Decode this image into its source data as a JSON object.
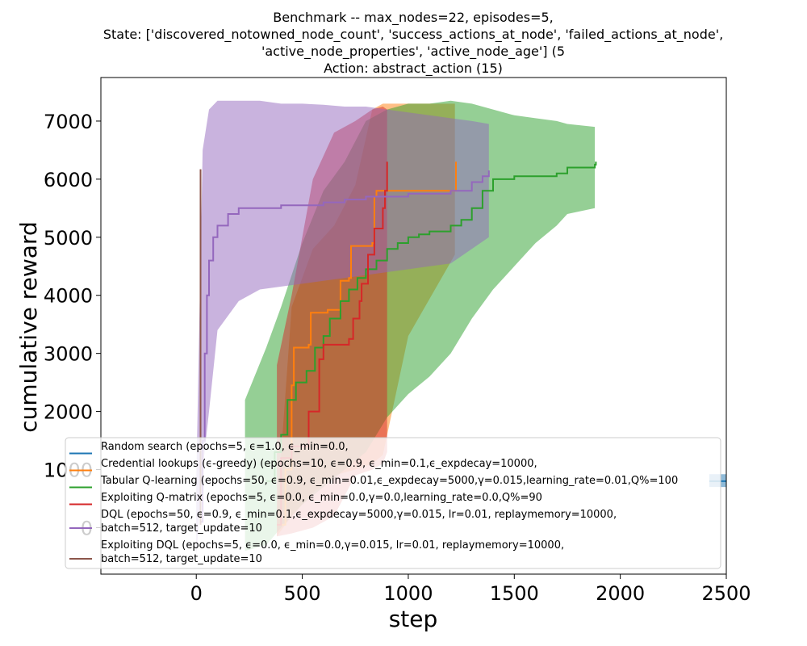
{
  "chart_data": {
    "type": "line",
    "title_lines": [
      "Benchmark -- max_nodes=22, episodes=5,",
      "State: ['discovered_notowned_node_count', 'success_actions_at_node', 'failed_actions_at_node',",
      "'active_node_properties', 'active_node_age'] (5",
      "Action: abstract_action (15)"
    ],
    "xlabel": "step",
    "ylabel": "cumulative reward",
    "xlim": [
      -450,
      2500
    ],
    "ylim": [
      -800,
      7750
    ],
    "xticks": [
      0,
      500,
      1000,
      1500,
      2000,
      2500
    ],
    "yticks": [
      0,
      1000,
      2000,
      3000,
      4000,
      5000,
      6000,
      7000
    ],
    "legend_position": "lower center",
    "series": [
      {
        "name": "Random search (epochs=5, ϵ=1.0, ϵ_min=0.0,",
        "color": "#1f77b4",
        "points": [
          [
            2420,
            800
          ],
          [
            2500,
            800
          ]
        ],
        "band": {
          "x": [
            2420,
            2500
          ],
          "lo": [
            700,
            700
          ],
          "hi": [
            920,
            920
          ]
        }
      },
      {
        "name": "Credential lookups (ϵ-greedy) (epochs=10, ϵ=0.9, ϵ_min=0.1,ϵ_expdecay=10000,",
        "color": "#ff7f0e",
        "points": [
          [
            380,
            50
          ],
          [
            420,
            1000
          ],
          [
            450,
            2450
          ],
          [
            460,
            3100
          ],
          [
            530,
            3150
          ],
          [
            540,
            3700
          ],
          [
            620,
            3750
          ],
          [
            650,
            3750
          ],
          [
            680,
            4250
          ],
          [
            720,
            4300
          ],
          [
            730,
            4850
          ],
          [
            830,
            4900
          ],
          [
            840,
            5700
          ],
          [
            850,
            5800
          ],
          [
            1220,
            5800
          ],
          [
            1225,
            6300
          ]
        ],
        "band": {
          "x": [
            380,
            450,
            550,
            650,
            750,
            830,
            880,
            1000,
            1220
          ],
          "lo": [
            -150,
            200,
            600,
            900,
            1000,
            1100,
            1250,
            3300,
            4700
          ],
          "hi": [
            250,
            3800,
            4800,
            5200,
            5900,
            7200,
            7300,
            7300,
            7300
          ]
        }
      },
      {
        "name": "Tabular Q-learning (epochs=50, ϵ=0.9, ϵ_min=0.01,ϵ_expdecay=5000,γ=0.015,learning_rate=0.01,Q%=100",
        "color": "#2ca02c",
        "points": [
          [
            330,
            800
          ],
          [
            370,
            1300
          ],
          [
            400,
            1600
          ],
          [
            430,
            2200
          ],
          [
            470,
            2500
          ],
          [
            520,
            2700
          ],
          [
            560,
            3100
          ],
          [
            600,
            3300
          ],
          [
            630,
            3600
          ],
          [
            680,
            3900
          ],
          [
            720,
            4100
          ],
          [
            760,
            4300
          ],
          [
            800,
            4450
          ],
          [
            850,
            4600
          ],
          [
            900,
            4800
          ],
          [
            950,
            4900
          ],
          [
            1000,
            5000
          ],
          [
            1050,
            5050
          ],
          [
            1100,
            5100
          ],
          [
            1200,
            5200
          ],
          [
            1250,
            5300
          ],
          [
            1300,
            5500
          ],
          [
            1350,
            5800
          ],
          [
            1400,
            6000
          ],
          [
            1500,
            6050
          ],
          [
            1700,
            6100
          ],
          [
            1750,
            6200
          ],
          [
            1880,
            6250
          ],
          [
            1885,
            6300
          ]
        ],
        "band": {
          "x": [
            230,
            330,
            400,
            500,
            600,
            700,
            800,
            900,
            1000,
            1100,
            1200,
            1300,
            1400,
            1500,
            1600,
            1700,
            1750,
            1880
          ],
          "lo": [
            -400,
            -300,
            0,
            400,
            700,
            1000,
            1300,
            1900,
            2300,
            2600,
            3000,
            3600,
            4100,
            4500,
            4900,
            5200,
            5400,
            5500
          ],
          "hi": [
            2200,
            3100,
            3800,
            4900,
            5800,
            6300,
            7000,
            7200,
            7300,
            7300,
            7350,
            7300,
            7200,
            7100,
            7050,
            7000,
            6950,
            6900
          ]
        }
      },
      {
        "name": "Exploiting Q-matrix (epochs=5, ϵ=0.0, ϵ_min=0.0,γ=0.0,learning_rate=0.0,Q%=90",
        "color": "#d62728",
        "points": [
          [
            380,
            50
          ],
          [
            400,
            1200
          ],
          [
            450,
            1400
          ],
          [
            530,
            2000
          ],
          [
            580,
            2900
          ],
          [
            600,
            3150
          ],
          [
            700,
            3150
          ],
          [
            720,
            3250
          ],
          [
            740,
            3600
          ],
          [
            770,
            3900
          ],
          [
            780,
            4200
          ],
          [
            810,
            4700
          ],
          [
            840,
            5150
          ],
          [
            880,
            5500
          ],
          [
            890,
            5800
          ],
          [
            900,
            6300
          ]
        ],
        "band": {
          "x": [
            380,
            450,
            550,
            650,
            750,
            830,
            880,
            900
          ],
          "lo": [
            -150,
            -100,
            0,
            200,
            900,
            1000,
            1100,
            1300
          ],
          "hi": [
            2800,
            4000,
            6000,
            6800,
            7000,
            7200,
            7250,
            7200
          ]
        }
      },
      {
        "name": "DQL (epochs=50, ϵ=0.9, ϵ_min=0.1,ϵ_expdecay=5000,γ=0.015, lr=0.01, replaymemory=10000,\nbatch=512, target_update=10",
        "color": "#9467bd",
        "points": [
          [
            20,
            100
          ],
          [
            30,
            1500
          ],
          [
            40,
            3000
          ],
          [
            50,
            4000
          ],
          [
            60,
            4600
          ],
          [
            80,
            5000
          ],
          [
            100,
            5200
          ],
          [
            150,
            5400
          ],
          [
            200,
            5500
          ],
          [
            400,
            5550
          ],
          [
            600,
            5600
          ],
          [
            700,
            5650
          ],
          [
            800,
            5700
          ],
          [
            1000,
            5750
          ],
          [
            1200,
            5800
          ],
          [
            1300,
            5950
          ],
          [
            1350,
            6050
          ],
          [
            1380,
            6150
          ]
        ],
        "band": {
          "x": [
            0,
            30,
            60,
            100,
            200,
            300,
            400,
            500,
            600,
            700,
            800,
            900,
            1000,
            1100,
            1200,
            1300,
            1380
          ],
          "lo": [
            -500,
            1000,
            2000,
            3400,
            3900,
            4100,
            4150,
            4200,
            4250,
            4300,
            4350,
            4400,
            4450,
            4500,
            4550,
            4800,
            5000
          ],
          "hi": [
            800,
            6500,
            7200,
            7350,
            7350,
            7350,
            7300,
            7300,
            7280,
            7250,
            7250,
            7200,
            7150,
            7100,
            7050,
            7000,
            6950
          ]
        }
      },
      {
        "name": "Exploiting DQL (epochs=5, ϵ=0.0, ϵ_min=0.0,γ=0.015, lr=0.01, replaymemory=10000,\nbatch=512, target_update=10",
        "color": "#8c564b",
        "points": [
          [
            20,
            50
          ],
          [
            20,
            6170
          ]
        ]
      }
    ]
  }
}
